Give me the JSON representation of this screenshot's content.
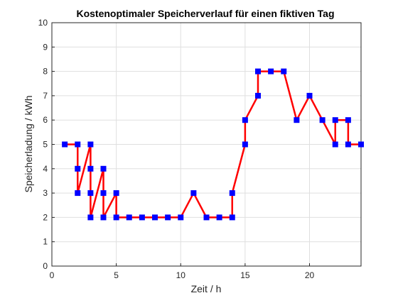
{
  "chart_data": {
    "type": "line",
    "title": "Kostenoptimaler Speicherverlauf für einen fiktiven Tag",
    "xlabel": "Zeit / h",
    "ylabel": "Speicherladung / kWh",
    "xlim": [
      0,
      24
    ],
    "ylim": [
      0,
      10
    ],
    "xticks": [
      0,
      5,
      10,
      15,
      20
    ],
    "yticks": [
      0,
      1,
      2,
      3,
      4,
      5,
      6,
      7,
      8,
      9,
      10
    ],
    "grid": true,
    "line_color": "#ff0000",
    "marker_color": "#0000ff",
    "series": [
      {
        "x": [
          1,
          2,
          2,
          2,
          3,
          3,
          3,
          3,
          4,
          4,
          4,
          5,
          5,
          6,
          7,
          8,
          9,
          10,
          11,
          12,
          13,
          14,
          14,
          15,
          15,
          16,
          16,
          17,
          18,
          19,
          20,
          21,
          22,
          22,
          23,
          23,
          24
        ],
        "y": [
          5,
          5,
          4,
          3,
          5,
          4,
          3,
          2,
          4,
          3,
          2,
          3,
          2,
          2,
          2,
          2,
          2,
          2,
          3,
          2,
          2,
          2,
          3,
          5,
          6,
          7,
          8,
          8,
          8,
          6,
          7,
          6,
          5,
          6,
          6,
          5,
          5
        ]
      }
    ]
  }
}
